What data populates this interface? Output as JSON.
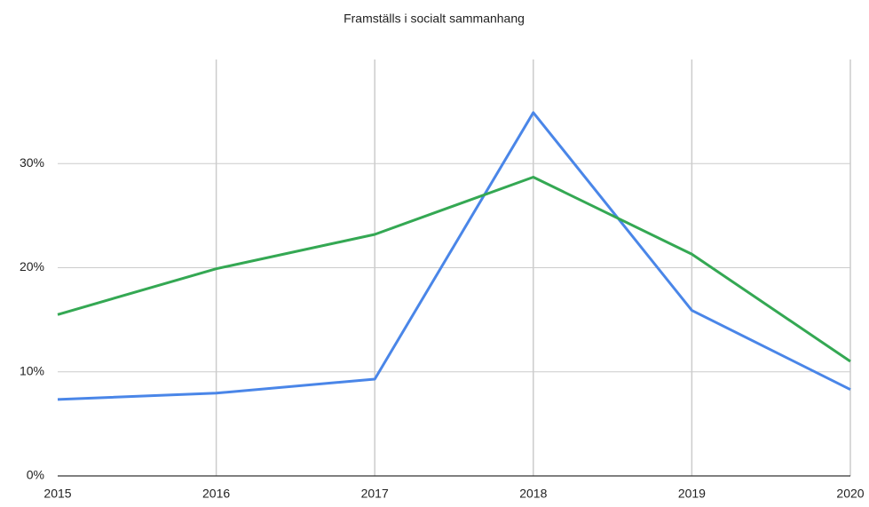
{
  "chart_data": {
    "type": "line",
    "title": "Framställs i socialt sammanhang",
    "categories": [
      "2015",
      "2016",
      "2017",
      "2018",
      "2019",
      "2020"
    ],
    "series": [
      {
        "color": "#4a86e8",
        "values": [
          7.35,
          7.95,
          9.3,
          34.9,
          15.9,
          8.3
        ]
      },
      {
        "color": "#34a853",
        "values": [
          15.5,
          19.9,
          23.2,
          28.7,
          21.3,
          11.0
        ]
      }
    ],
    "ylim": [
      0,
      40
    ],
    "yticks": [
      {
        "value": 0,
        "label": "0%"
      },
      {
        "value": 10,
        "label": "10%"
      },
      {
        "value": 20,
        "label": "20%"
      },
      {
        "value": 30,
        "label": "30%"
      }
    ],
    "grid": true
  }
}
